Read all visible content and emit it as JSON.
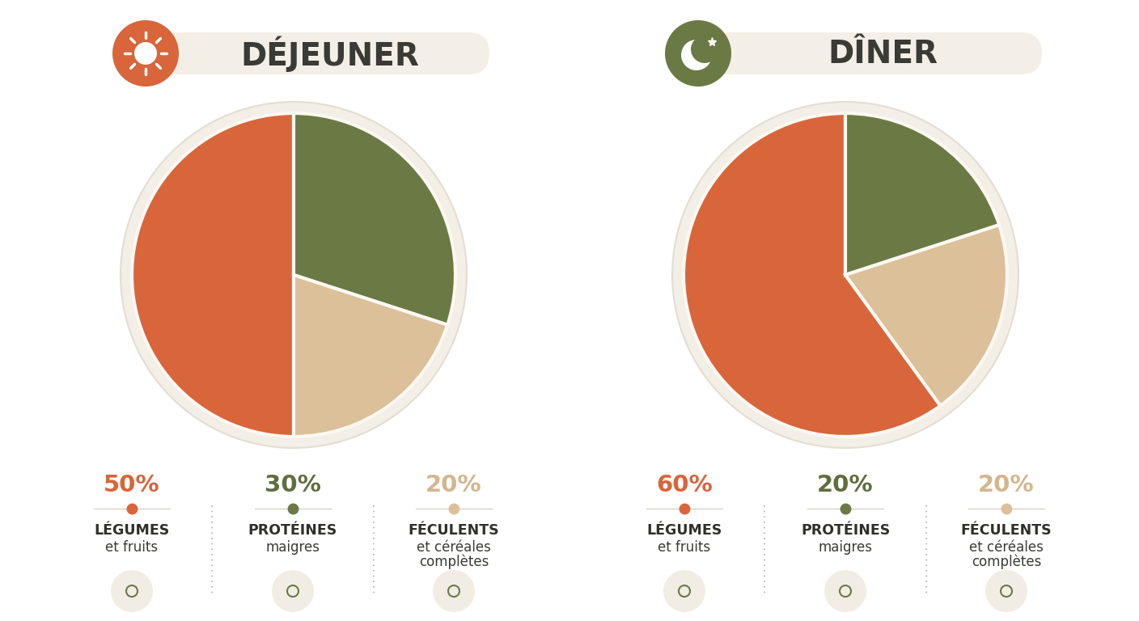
{
  "chart_data": [
    {
      "type": "pie",
      "title": "DÉJEUNER",
      "categories": [
        "LÉGUMES",
        "PROTÉINES",
        "FÉCULENTS"
      ],
      "descriptions": [
        "et fruits",
        "maigres",
        "et céréales complètes"
      ],
      "values": [
        50,
        30,
        20
      ],
      "value_labels": [
        "50%",
        "30%",
        "20%"
      ],
      "colors": [
        "#d9653b",
        "#6b7a45",
        "#dcc09a"
      ],
      "data_labels": true
    },
    {
      "type": "pie",
      "title": "DÎNER",
      "categories": [
        "LÉGUMES",
        "PROTÉINES",
        "FÉCULENTS"
      ],
      "descriptions": [
        "et fruits",
        "maigres",
        "et céréales complètes"
      ],
      "values": [
        60,
        20,
        20
      ],
      "value_labels": [
        "60%",
        "20%",
        "20%"
      ],
      "colors": [
        "#d9653b",
        "#6b7a45",
        "#dcc09a"
      ],
      "data_labels": true
    }
  ]
}
